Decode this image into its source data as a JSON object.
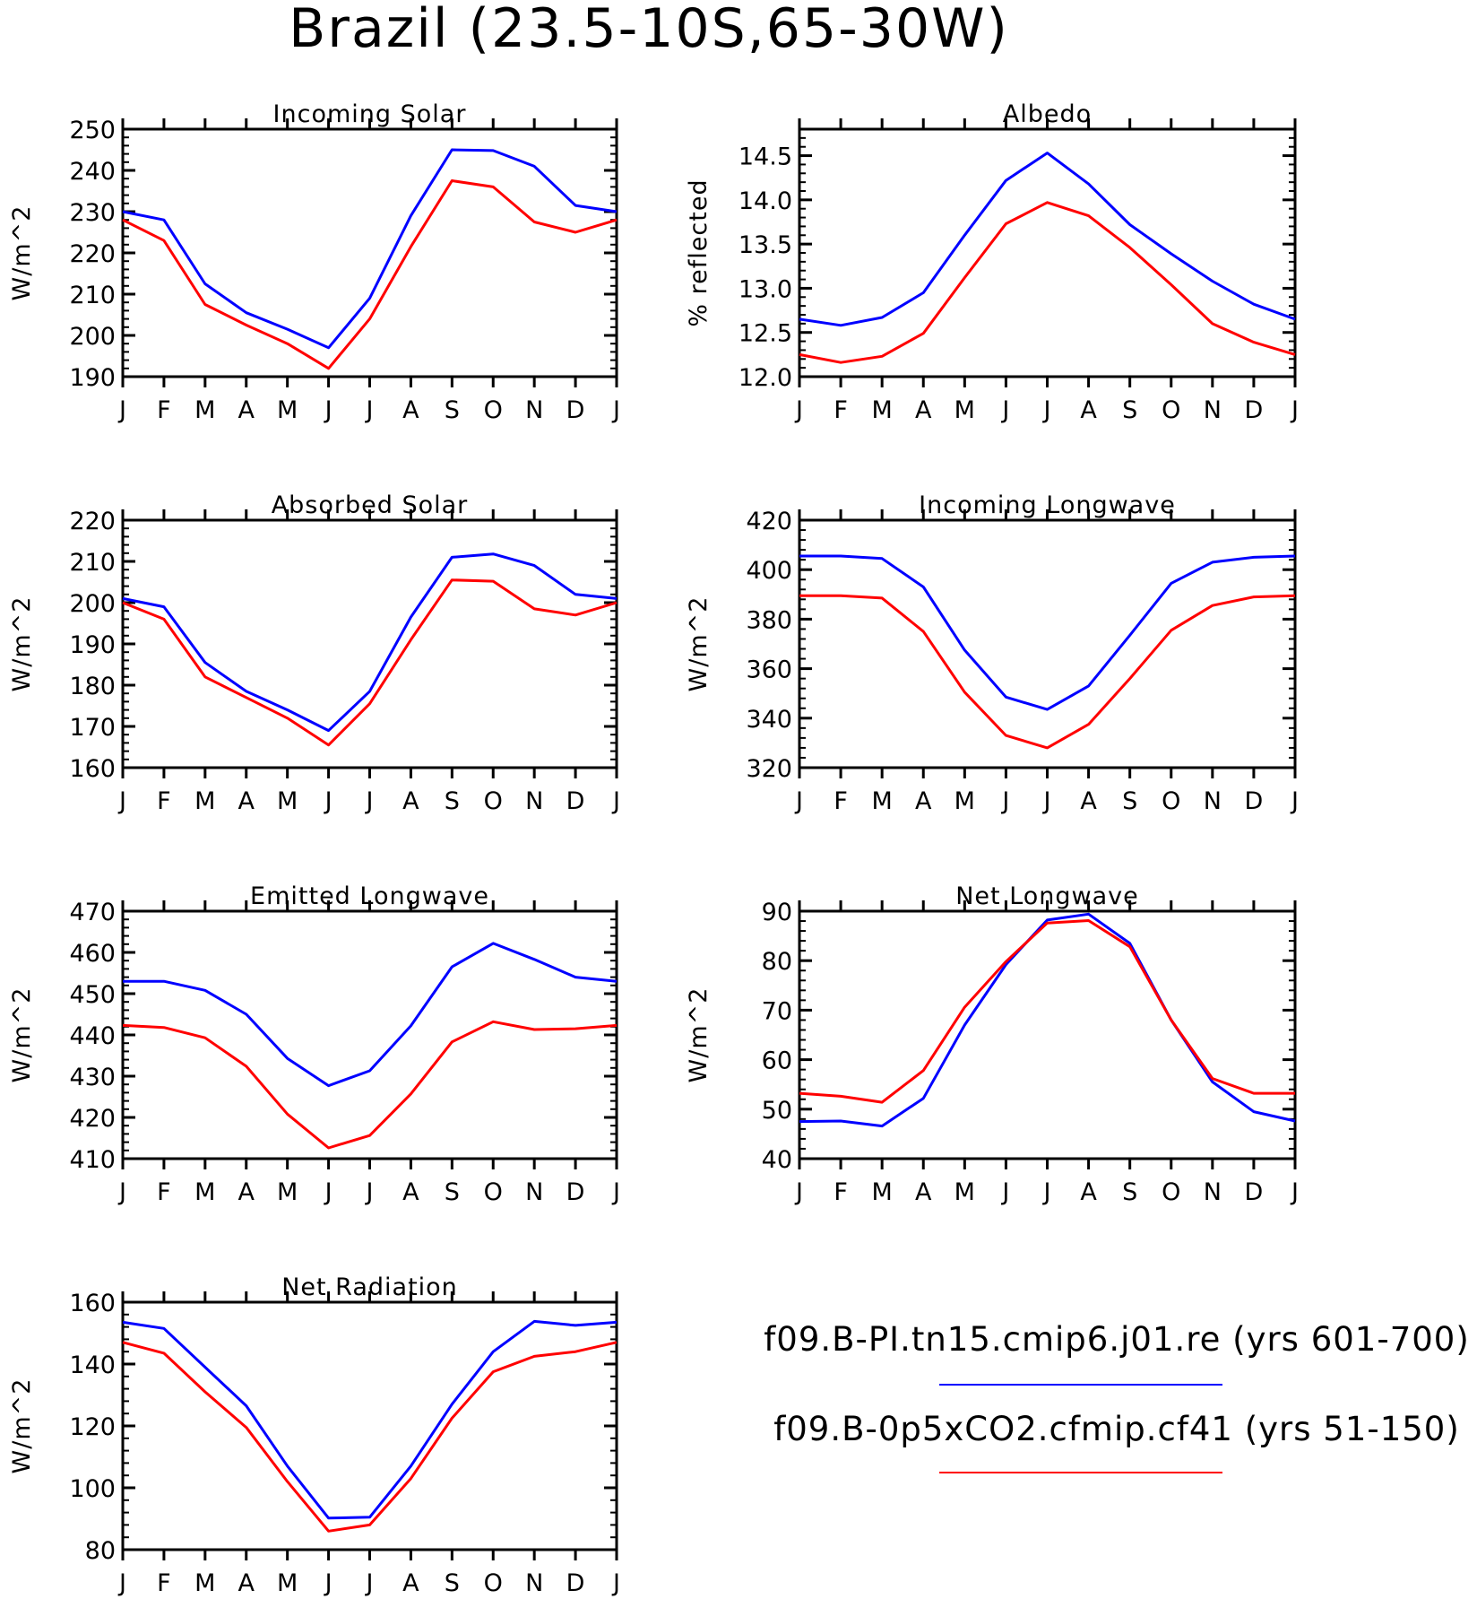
{
  "title": "Brazil (23.5-10S,65-30W)",
  "colors": {
    "series_1": "#0000ff",
    "series_2": "#ff0000",
    "axes": "#000000"
  },
  "legend": [
    {
      "name": "f09.B-PI.tn15.cmip6.j01.re (yrs 601-700)",
      "color": "#0000ff"
    },
    {
      "name": "f09.B-0p5xCO2.cfmip.cf41 (yrs 51-150)",
      "color": "#ff0000"
    }
  ],
  "chart_data": [
    {
      "type": "line",
      "title": "Incoming Solar",
      "xlabel": "",
      "ylabel": "W/m^2",
      "categories": [
        "J",
        "F",
        "M",
        "A",
        "M",
        "J",
        "J",
        "A",
        "S",
        "O",
        "N",
        "D",
        "J"
      ],
      "ylim": [
        190,
        250
      ],
      "yticks": [
        190,
        200,
        210,
        220,
        230,
        240,
        250
      ],
      "ytick_labels": [
        "190",
        "200",
        "210",
        "220",
        "230",
        "240",
        "250"
      ],
      "series": [
        {
          "name": "f09.B-PI.tn15.cmip6.j01.re (yrs 601-700)",
          "color": "#0000ff",
          "values": [
            230,
            228,
            212.5,
            205.5,
            201.5,
            197,
            209,
            229,
            245,
            244.8,
            241,
            231.5,
            230
          ]
        },
        {
          "name": "f09.B-0p5xCO2.cfmip.cf41 (yrs 51-150)",
          "color": "#ff0000",
          "values": [
            228,
            223,
            207.5,
            202.5,
            198,
            192,
            204,
            221.5,
            237.5,
            236,
            227.5,
            225,
            228
          ]
        }
      ]
    },
    {
      "type": "line",
      "title": "Albedo",
      "xlabel": "",
      "ylabel": "% reflected",
      "categories": [
        "J",
        "F",
        "M",
        "A",
        "M",
        "J",
        "J",
        "A",
        "S",
        "O",
        "N",
        "D",
        "J"
      ],
      "ylim": [
        12.0,
        14.8
      ],
      "yticks": [
        12.0,
        12.5,
        13.0,
        13.5,
        14.0,
        14.5
      ],
      "ytick_labels": [
        "12.0",
        "12.5",
        "13.0",
        "13.5",
        "14.0",
        "14.5"
      ],
      "series": [
        {
          "name": "f09.B-PI.tn15.cmip6.j01.re (yrs 601-700)",
          "color": "#0000ff",
          "values": [
            12.65,
            12.58,
            12.67,
            12.95,
            13.6,
            14.22,
            14.53,
            14.18,
            13.72,
            13.39,
            13.08,
            12.82,
            12.65
          ]
        },
        {
          "name": "f09.B-0p5xCO2.cfmip.cf41 (yrs 51-150)",
          "color": "#ff0000",
          "values": [
            12.25,
            12.16,
            12.23,
            12.49,
            13.12,
            13.73,
            13.97,
            13.82,
            13.46,
            13.04,
            12.6,
            12.39,
            12.25
          ]
        }
      ]
    },
    {
      "type": "line",
      "title": "Absorbed Solar",
      "xlabel": "",
      "ylabel": "W/m^2",
      "categories": [
        "J",
        "F",
        "M",
        "A",
        "M",
        "J",
        "J",
        "A",
        "S",
        "O",
        "N",
        "D",
        "J"
      ],
      "ylim": [
        160,
        220
      ],
      "yticks": [
        160,
        170,
        180,
        190,
        200,
        210,
        220
      ],
      "ytick_labels": [
        "160",
        "170",
        "180",
        "190",
        "200",
        "210",
        "220"
      ],
      "series": [
        {
          "name": "f09.B-PI.tn15.cmip6.j01.re (yrs 601-700)",
          "color": "#0000ff",
          "values": [
            201,
            199,
            185.5,
            178.5,
            174,
            169,
            178.5,
            196.5,
            211,
            211.8,
            209,
            202,
            201
          ]
        },
        {
          "name": "f09.B-0p5xCO2.cfmip.cf41 (yrs 51-150)",
          "color": "#ff0000",
          "values": [
            200,
            196,
            182,
            177,
            172,
            165.5,
            175.5,
            191,
            205.5,
            205.2,
            198.5,
            197,
            200
          ]
        }
      ]
    },
    {
      "type": "line",
      "title": "Incoming Longwave",
      "xlabel": "",
      "ylabel": "W/m^2",
      "categories": [
        "J",
        "F",
        "M",
        "A",
        "M",
        "J",
        "J",
        "A",
        "S",
        "O",
        "N",
        "D",
        "J"
      ],
      "ylim": [
        320,
        420
      ],
      "yticks": [
        320,
        340,
        360,
        380,
        400,
        420
      ],
      "ytick_labels": [
        "320",
        "340",
        "360",
        "380",
        "400",
        "420"
      ],
      "series": [
        {
          "name": "f09.B-PI.tn15.cmip6.j01.re (yrs 601-700)",
          "color": "#0000ff",
          "values": [
            405.5,
            405.5,
            404.5,
            393,
            367.5,
            348.5,
            343.5,
            353,
            373.5,
            394.5,
            403,
            405,
            405.5
          ]
        },
        {
          "name": "f09.B-0p5xCO2.cfmip.cf41 (yrs 51-150)",
          "color": "#ff0000",
          "values": [
            389.5,
            389.5,
            388.5,
            375,
            350.5,
            333,
            328,
            337.5,
            356,
            375.5,
            385.5,
            389,
            389.5
          ]
        }
      ]
    },
    {
      "type": "line",
      "title": "Emitted Longwave",
      "xlabel": "",
      "ylabel": "W/m^2",
      "categories": [
        "J",
        "F",
        "M",
        "A",
        "M",
        "J",
        "J",
        "A",
        "S",
        "O",
        "N",
        "D",
        "J"
      ],
      "ylim": [
        410,
        470
      ],
      "yticks": [
        410,
        420,
        430,
        440,
        450,
        460,
        470
      ],
      "ytick_labels": [
        "410",
        "420",
        "430",
        "440",
        "450",
        "460",
        "470"
      ],
      "series": [
        {
          "name": "f09.B-PI.tn15.cmip6.j01.re (yrs 601-700)",
          "color": "#0000ff",
          "values": [
            453,
            453,
            450.8,
            445,
            434.3,
            427.7,
            431.3,
            442.2,
            456.5,
            462.2,
            458.3,
            454,
            453
          ]
        },
        {
          "name": "f09.B-0p5xCO2.cfmip.cf41 (yrs 51-150)",
          "color": "#ff0000",
          "values": [
            442.3,
            441.8,
            439.3,
            432.4,
            420.8,
            412.6,
            415.6,
            425.7,
            438.3,
            443.2,
            441.3,
            441.5,
            442.3
          ]
        }
      ]
    },
    {
      "type": "line",
      "title": "Net Longwave",
      "xlabel": "",
      "ylabel": "W/m^2",
      "categories": [
        "J",
        "F",
        "M",
        "A",
        "M",
        "J",
        "J",
        "A",
        "S",
        "O",
        "N",
        "D",
        "J"
      ],
      "ylim": [
        40,
        90
      ],
      "yticks": [
        40,
        50,
        60,
        70,
        80,
        90
      ],
      "ytick_labels": [
        "40",
        "50",
        "60",
        "70",
        "80",
        "90"
      ],
      "series": [
        {
          "name": "f09.B-PI.tn15.cmip6.j01.re (yrs 601-700)",
          "color": "#0000ff",
          "values": [
            47.5,
            47.6,
            46.6,
            52.2,
            67,
            79.2,
            88.2,
            89.4,
            83.5,
            68,
            55.5,
            49.5,
            47.6
          ]
        },
        {
          "name": "f09.B-0p5xCO2.cfmip.cf41 (yrs 51-150)",
          "color": "#ff0000",
          "values": [
            53.2,
            52.6,
            51.4,
            57.8,
            70.6,
            79.8,
            87.6,
            88.1,
            82.8,
            68,
            56.2,
            53.2,
            53.2
          ]
        }
      ]
    },
    {
      "type": "line",
      "title": "Net Radiation",
      "xlabel": "",
      "ylabel": "W/m^2",
      "categories": [
        "J",
        "F",
        "M",
        "A",
        "M",
        "J",
        "J",
        "A",
        "S",
        "O",
        "N",
        "D",
        "J"
      ],
      "ylim": [
        80,
        160
      ],
      "yticks": [
        80,
        100,
        120,
        140,
        160
      ],
      "ytick_labels": [
        "80",
        "100",
        "120",
        "140",
        "160"
      ],
      "series": [
        {
          "name": "f09.B-PI.tn15.cmip6.j01.re (yrs 601-700)",
          "color": "#0000ff",
          "values": [
            153.5,
            151.5,
            139,
            126.5,
            107,
            90.2,
            90.5,
            107,
            127,
            144,
            153.8,
            152.5,
            153.5
          ]
        },
        {
          "name": "f09.B-0p5xCO2.cfmip.cf41 (yrs 51-150)",
          "color": "#ff0000",
          "values": [
            147,
            143.5,
            131,
            119.5,
            102,
            86,
            88,
            103,
            122.5,
            137.5,
            142.5,
            144,
            147
          ]
        }
      ]
    }
  ]
}
